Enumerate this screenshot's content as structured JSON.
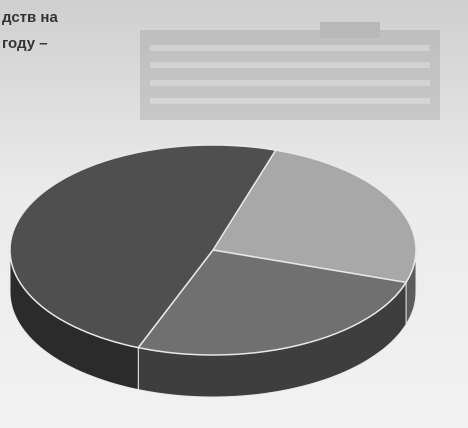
{
  "chart_data": {
    "type": "pie",
    "title_lines": [
      "дств на",
      "году –"
    ],
    "categories": [
      null,
      null,
      null
    ],
    "values": [
      25,
      26,
      49
    ],
    "colors": [
      "#a8a8a8",
      "#707070",
      "#4f4f4f"
    ],
    "three_d": true
  }
}
